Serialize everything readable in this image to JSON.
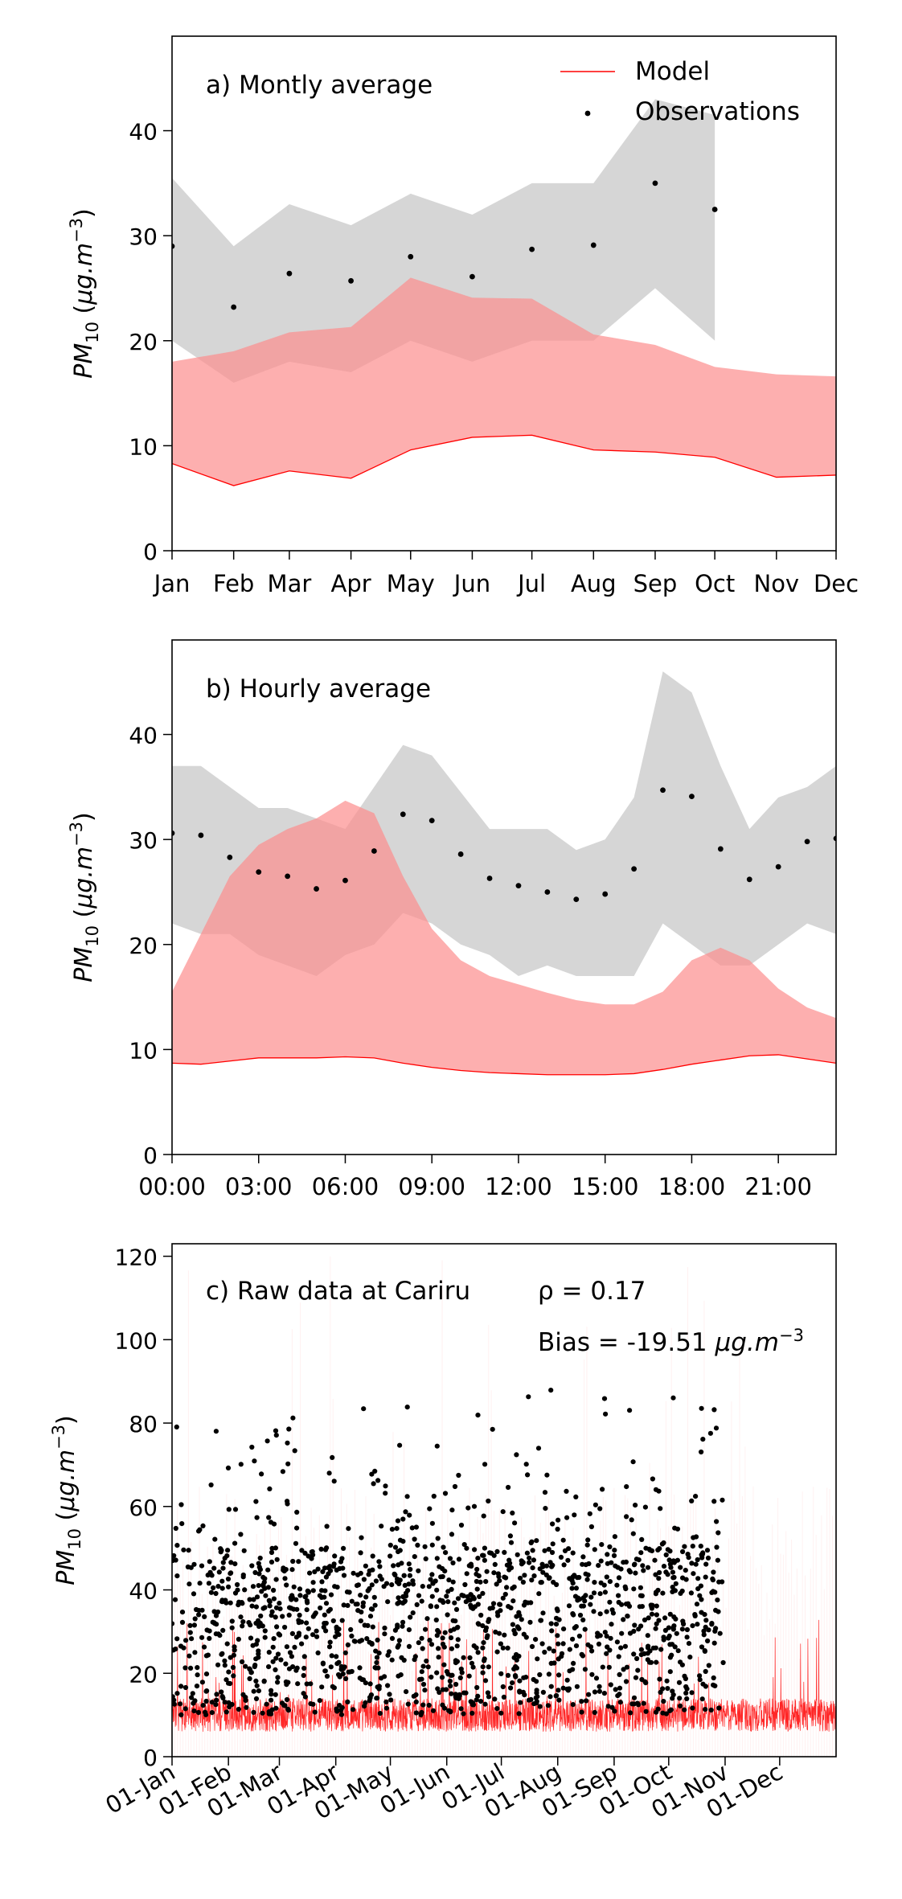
{
  "legend": {
    "model_label": "Model",
    "obs_label": "Observations",
    "placement": "upper-right of panel a"
  },
  "colors": {
    "model_line": "#ff0000",
    "model_band": "#fc8d8d",
    "obs_band": "#c8c8c8",
    "obs_points": "#000000"
  },
  "chart_data": [
    {
      "type": "area",
      "title": "a) Montly average",
      "ylabel": "PM10 (μg.m−3)",
      "ylim": [
        0,
        49
      ],
      "yticks": [
        0,
        10,
        20,
        30,
        40
      ],
      "categories": [
        "Jan",
        "Feb",
        "Mar",
        "Apr",
        "May",
        "Jun",
        "Jul",
        "Aug",
        "Sep",
        "Oct",
        "Nov",
        "Dec"
      ],
      "grid": false,
      "series": [
        {
          "name": "Model",
          "kind": "line",
          "values": [
            8.3,
            6.2,
            7.6,
            6.9,
            9.6,
            10.8,
            11.0,
            9.6,
            9.4,
            8.9,
            7.0,
            7.2
          ]
        },
        {
          "kind": "band",
          "lower": [
            8.3,
            6.2,
            7.6,
            6.9,
            9.6,
            10.8,
            11.0,
            9.6,
            9.4,
            8.9,
            7.0,
            7.2
          ],
          "upper": [
            18.0,
            19.0,
            20.8,
            21.3,
            26.0,
            24.1,
            24.0,
            20.6,
            19.6,
            17.5,
            16.8,
            16.6
          ]
        },
        {
          "name": "Observations",
          "kind": "points",
          "values": [
            29.0,
            23.2,
            26.4,
            25.7,
            28.0,
            26.1,
            28.7,
            29.1,
            35.0,
            32.5,
            null,
            null
          ]
        },
        {
          "kind": "band",
          "lower": [
            20.0,
            16.0,
            18.0,
            17.0,
            20.0,
            18.0,
            20.0,
            20.0,
            25.0,
            20.0,
            null,
            null
          ],
          "upper": [
            35.5,
            29.0,
            33.0,
            31.0,
            34.0,
            32.0,
            35.0,
            35.0,
            43.0,
            41.5,
            null,
            null
          ]
        }
      ]
    },
    {
      "type": "area",
      "title": "b) Hourly average",
      "ylabel": "PM10 (μg.m−3)",
      "ylim": [
        0,
        49
      ],
      "yticks": [
        0,
        10,
        20,
        30,
        40
      ],
      "x": [
        0,
        1,
        2,
        3,
        4,
        5,
        6,
        7,
        8,
        9,
        10,
        11,
        12,
        13,
        14,
        15,
        16,
        17,
        18,
        19,
        20,
        21,
        22,
        23
      ],
      "xticks": [
        "00:00",
        "03:00",
        "06:00",
        "09:00",
        "12:00",
        "15:00",
        "18:00",
        "21:00"
      ],
      "xlim": [
        0,
        23
      ],
      "grid": false,
      "series": [
        {
          "name": "Model",
          "kind": "line",
          "values": [
            8.7,
            8.6,
            8.9,
            9.2,
            9.2,
            9.2,
            9.3,
            9.2,
            8.7,
            8.3,
            8.0,
            7.8,
            7.7,
            7.6,
            7.6,
            7.6,
            7.7,
            8.1,
            8.6,
            9.0,
            9.4,
            9.5,
            9.1,
            8.7
          ]
        },
        {
          "kind": "band",
          "lower": [
            8.7,
            8.6,
            8.9,
            9.2,
            9.2,
            9.2,
            9.3,
            9.2,
            8.7,
            8.3,
            8.0,
            7.8,
            7.7,
            7.6,
            7.6,
            7.6,
            7.7,
            8.1,
            8.6,
            9.0,
            9.4,
            9.5,
            9.1,
            8.7
          ],
          "upper": [
            15.5,
            21.0,
            26.5,
            29.5,
            31.0,
            32.0,
            33.7,
            32.5,
            26.5,
            21.5,
            18.5,
            17.0,
            16.2,
            15.4,
            14.7,
            14.3,
            14.3,
            15.5,
            18.5,
            19.7,
            18.5,
            15.8,
            14.0,
            13.0
          ]
        },
        {
          "name": "Observations",
          "kind": "points",
          "values": [
            30.6,
            30.4,
            28.3,
            26.9,
            26.5,
            25.3,
            26.1,
            28.9,
            32.4,
            31.8,
            28.6,
            26.3,
            25.6,
            25.0,
            24.3,
            24.8,
            27.2,
            34.7,
            34.1,
            29.1,
            26.2,
            27.4,
            29.8,
            30.1
          ]
        },
        {
          "kind": "band",
          "lower": [
            22.0,
            21.0,
            21.0,
            19.0,
            18.0,
            17.0,
            19.0,
            20.0,
            23.0,
            22.0,
            20.0,
            19.0,
            17.0,
            18.0,
            17.0,
            17.0,
            17.0,
            22.0,
            20.0,
            18.0,
            18.0,
            20.0,
            22.0,
            21.0
          ],
          "upper": [
            37.0,
            37.0,
            35.0,
            33.0,
            33.0,
            32.0,
            31.0,
            35.0,
            39.0,
            38.0,
            34.5,
            31.0,
            31.0,
            31.0,
            29.0,
            30.0,
            34.0,
            46.0,
            44.0,
            37.0,
            31.0,
            34.0,
            35.0,
            37.0
          ]
        }
      ]
    },
    {
      "type": "scatter",
      "title": "c) Raw data at Cariru",
      "annotations": [
        "ρ = 0.17",
        "Bias = -19.51"
      ],
      "annotation_unit": "μg.m−3",
      "ylabel": "PM10 (μg.m−3)",
      "ylim": [
        0,
        123
      ],
      "yticks": [
        0,
        20,
        40,
        60,
        80,
        100,
        120
      ],
      "xlim": [
        "2020-01-01",
        "2020-12-31"
      ],
      "xticks": [
        "01-Jan",
        "01-Feb",
        "01-Mar",
        "01-Apr",
        "01-May",
        "01-Jun",
        "01-Jul",
        "01-Aug",
        "01-Sep",
        "01-Oct",
        "01-Nov",
        "01-Dec"
      ],
      "grid": false,
      "series": [
        {
          "name": "Model",
          "kind": "line",
          "note": "hourly model series, mostly 3-20, spikes to ~43",
          "typical_range": [
            2,
            18
          ],
          "spike_max": 43,
          "period": [
            "2020-01-01",
            "2020-12-31"
          ]
        },
        {
          "name": "Observations",
          "kind": "points",
          "note": "hourly observations, dense 10-60",
          "typical_range": [
            10,
            60
          ],
          "max": 88,
          "period": [
            "2020-01-01",
            "2020-10-30"
          ]
        }
      ]
    }
  ]
}
